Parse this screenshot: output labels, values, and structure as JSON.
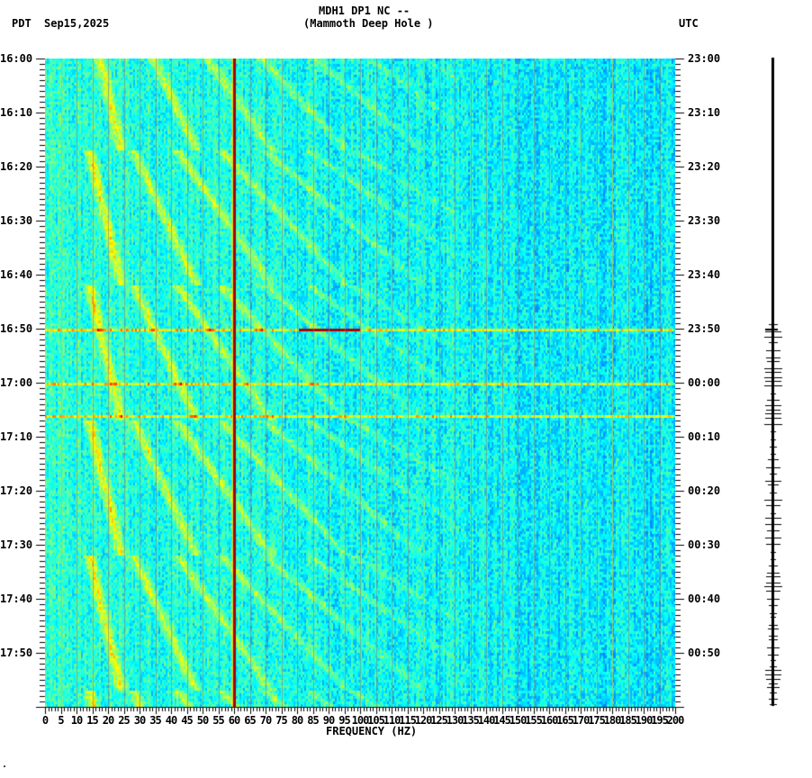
{
  "header": {
    "title_line1": "MDH1 DP1 NC --",
    "title_line2": "(Mammoth Deep Hole )",
    "left_tz": "PDT",
    "date": "Sep15,2025",
    "right_tz": "UTC"
  },
  "footer_mark": ".",
  "colors": {
    "background": "#0050ff",
    "gridline": "#808080",
    "line60": "#a00000",
    "event": "#c00000"
  },
  "chart_data": {
    "type": "heatmap",
    "title": "MDH1 DP1 NC -- (Mammoth Deep Hole )",
    "xlabel": "FREQUENCY (HZ)",
    "ylabel_left": "PDT",
    "ylabel_right": "UTC",
    "xlim": [
      0,
      200
    ],
    "x_ticks": [
      "0",
      "5",
      "10",
      "15",
      "20",
      "25",
      "30",
      "35",
      "40",
      "45",
      "50",
      "55",
      "60",
      "65",
      "70",
      "75",
      "80",
      "85",
      "90",
      "95",
      "100",
      "105",
      "110",
      "115",
      "120",
      "125",
      "130",
      "135",
      "140",
      "145",
      "150",
      "155",
      "160",
      "165",
      "170",
      "175",
      "180",
      "185",
      "190",
      "195",
      "200"
    ],
    "y_ticks_left": [
      "16:00",
      "16:10",
      "16:20",
      "16:30",
      "16:40",
      "16:50",
      "17:00",
      "17:10",
      "17:20",
      "17:30",
      "17:40",
      "17:50"
    ],
    "y_ticks_right": [
      "23:00",
      "23:10",
      "23:20",
      "23:30",
      "23:40",
      "23:50",
      "00:00",
      "00:10",
      "00:20",
      "00:30",
      "00:40",
      "00:50"
    ],
    "duration_minutes": 120,
    "persistent_lines_hz": [
      5,
      60,
      120,
      180
    ],
    "strong_line_hz": 60,
    "event_rows_minutes": [
      50,
      60,
      66
    ],
    "colormap": "jet",
    "notes": "Curved harmonic arcs recurring roughly every 25 minutes; broadband burst near 16:50 PDT"
  }
}
